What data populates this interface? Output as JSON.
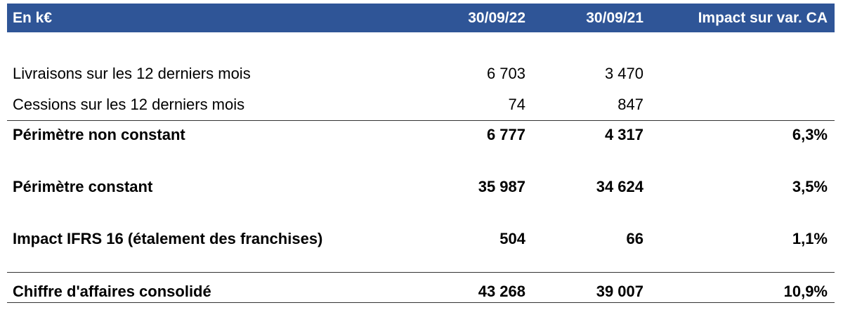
{
  "header": [
    "En k€",
    "30/09/22",
    "30/09/21",
    "Impact sur var. CA"
  ],
  "rows": [
    {
      "label": "Livraisons sur les 12 derniers mois",
      "values": [
        "6 703",
        "3 470"
      ]
    },
    {
      "label": "Cessions sur les 12 derniers mois",
      "values": [
        "74",
        "847"
      ]
    },
    {
      "label": "Périmètre non constant",
      "values": [
        "6 777",
        "4 317",
        "6,3%"
      ]
    },
    {
      "label": "Périmètre constant",
      "values": [
        "35 987",
        "34 624",
        "3,5%"
      ]
    },
    {
      "label": "Impact IFRS 16 (étalement des franchises)",
      "values": [
        "504",
        "66",
        "1,1%"
      ]
    },
    {
      "label": "Chiffre d'affaires consolidé",
      "values": [
        "43 268",
        "39 007",
        "10,9%"
      ]
    }
  ]
}
